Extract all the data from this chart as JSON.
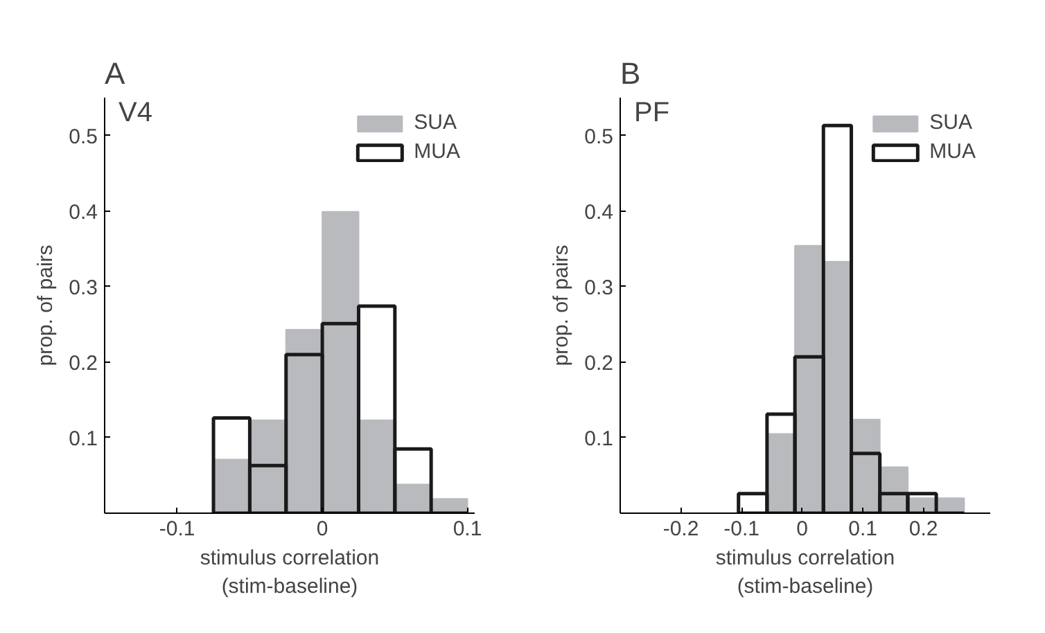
{
  "chart_data": [
    {
      "type": "histogram",
      "title": "A",
      "subtitle": "V4",
      "xlabel": "stimulus correlation\n(stim-baseline)",
      "ylabel": "prop. of pairs",
      "bins": [
        -0.075,
        -0.05,
        -0.025,
        0,
        0.025,
        0.05,
        0.075,
        0.1
      ],
      "series": [
        {
          "name": "SUA",
          "color": "#b9babe",
          "values": [
            0.071,
            0.123,
            0.243,
            0.399,
            0.123,
            0.038,
            0.019
          ]
        },
        {
          "name": "MUA",
          "color": "#1a1a1a",
          "values": [
            0.126,
            0.063,
            0.21,
            0.251,
            0.274,
            0.085,
            0
          ]
        }
      ],
      "xlim": [
        -0.15,
        0.105
      ],
      "xticks": [
        -0.1,
        0,
        0.1
      ],
      "ylim": [
        0,
        0.55
      ],
      "yticks": [
        0.1,
        0.2,
        0.3,
        0.4,
        0.5
      ],
      "legend": "top right",
      "grid": false
    },
    {
      "type": "histogram",
      "title": "B",
      "subtitle": "PF",
      "xlabel": "stimulus correlation\n(stim-baseline)",
      "ylabel": "prop. of pairs",
      "bins": [
        -0.105,
        -0.058,
        -0.012,
        0.035,
        0.081,
        0.128,
        0.174,
        0.221,
        0.267
      ],
      "series": [
        {
          "name": "SUA",
          "color": "#b9babe",
          "values": [
            0,
            0.105,
            0.354,
            0.333,
            0.124,
            0.061,
            0.02,
            0.02
          ]
        },
        {
          "name": "MUA",
          "color": "#1a1a1a",
          "values": [
            0.026,
            0.131,
            0.207,
            0.513,
            0.079,
            0.026,
            0.026,
            0
          ]
        }
      ],
      "xlim": [
        -0.3,
        0.31
      ],
      "xticks": [
        -0.2,
        -0.1,
        0,
        0.1,
        0.2
      ],
      "ylim": [
        0,
        0.55
      ],
      "yticks": [
        0.1,
        0.2,
        0.3,
        0.4,
        0.5
      ],
      "legend": "top right",
      "grid": false
    }
  ]
}
